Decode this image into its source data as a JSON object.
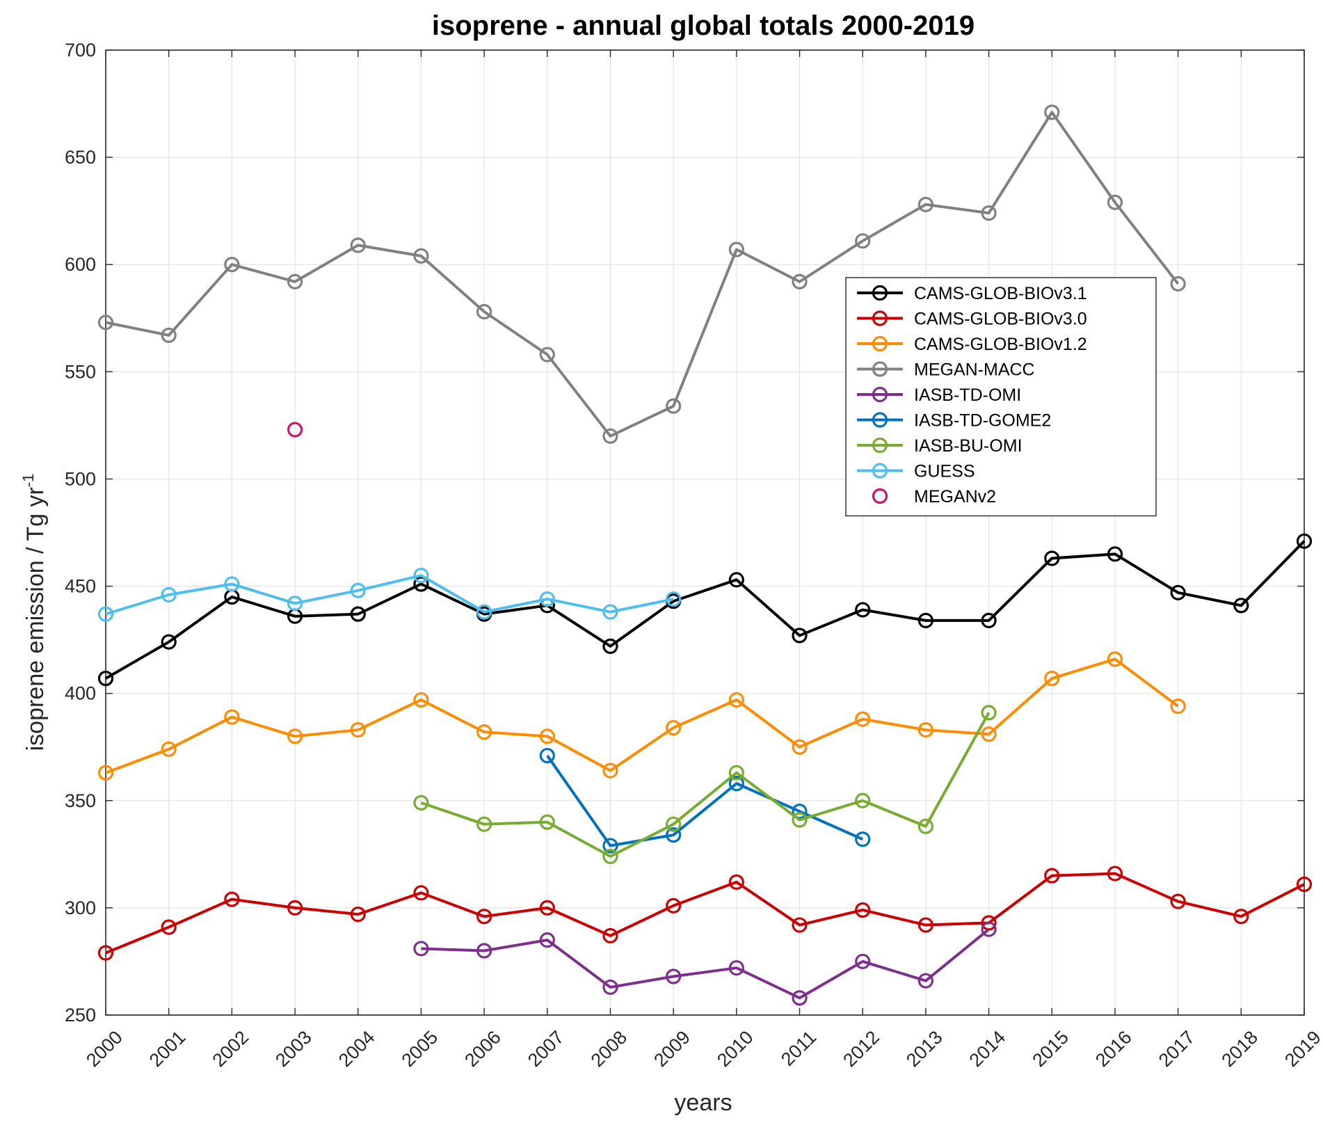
{
  "chart_data": {
    "type": "line",
    "title": "isoprene - annual global totals 2000-2019",
    "xlabel": "years",
    "ylabel_main": "isoprene emission / Tg yr",
    "ylabel_sup": "-1",
    "xlim": [
      2000,
      2019
    ],
    "ylim": [
      250,
      700
    ],
    "x_ticks": [
      "2000",
      "2001",
      "2002",
      "2003",
      "2004",
      "2005",
      "2006",
      "2007",
      "2008",
      "2009",
      "2010",
      "2011",
      "2012",
      "2013",
      "2014",
      "2015",
      "2016",
      "2017",
      "2018",
      "2019"
    ],
    "y_ticks": [
      "250",
      "300",
      "350",
      "400",
      "450",
      "500",
      "550",
      "600",
      "650",
      "700"
    ],
    "grid": true,
    "legend_position": "upper-right-inside",
    "series": [
      {
        "name": "CAMS-GLOB-BIOv3.1",
        "color": "#000000",
        "line": true,
        "x": [
          2000,
          2001,
          2002,
          2003,
          2004,
          2005,
          2006,
          2007,
          2008,
          2009,
          2010,
          2011,
          2012,
          2013,
          2014,
          2015,
          2016,
          2017,
          2018,
          2019
        ],
        "y": [
          407,
          424,
          445,
          436,
          437,
          451,
          437,
          441,
          422,
          443,
          453,
          427,
          439,
          434,
          434,
          463,
          465,
          447,
          441,
          471
        ]
      },
      {
        "name": "CAMS-GLOB-BIOv3.0",
        "color": "#cc0000",
        "line": true,
        "x": [
          2000,
          2001,
          2002,
          2003,
          2004,
          2005,
          2006,
          2007,
          2008,
          2009,
          2010,
          2011,
          2012,
          2013,
          2014,
          2015,
          2016,
          2017,
          2018,
          2019
        ],
        "y": [
          279,
          291,
          304,
          300,
          297,
          307,
          296,
          300,
          287,
          301,
          312,
          292,
          299,
          292,
          293,
          315,
          316,
          303,
          296,
          311
        ]
      },
      {
        "name": "CAMS-GLOB-BIOv1.2",
        "color": "#ff8c00",
        "line": true,
        "x": [
          2000,
          2001,
          2002,
          2003,
          2004,
          2005,
          2006,
          2007,
          2008,
          2009,
          2010,
          2011,
          2012,
          2013,
          2014,
          2015,
          2016,
          2017
        ],
        "y": [
          363,
          374,
          389,
          380,
          383,
          397,
          382,
          380,
          364,
          384,
          397,
          375,
          388,
          383,
          381,
          407,
          416,
          394
        ]
      },
      {
        "name": "MEGAN-MACC",
        "color": "#808080",
        "line": true,
        "x": [
          2000,
          2001,
          2002,
          2003,
          2004,
          2005,
          2006,
          2007,
          2008,
          2009,
          2010,
          2011,
          2012,
          2013,
          2014,
          2015,
          2016,
          2017
        ],
        "y": [
          573,
          567,
          600,
          592,
          609,
          604,
          578,
          558,
          520,
          534,
          607,
          592,
          611,
          628,
          624,
          671,
          629,
          591
        ]
      },
      {
        "name": "IASB-TD-OMI",
        "color": "#7e2f8e",
        "line": true,
        "x": [
          2005,
          2006,
          2007,
          2008,
          2009,
          2010,
          2011,
          2012,
          2013,
          2014
        ],
        "y": [
          281,
          280,
          285,
          263,
          268,
          272,
          258,
          275,
          266,
          290
        ]
      },
      {
        "name": "IASB-TD-GOME2",
        "color": "#0072bd",
        "line": true,
        "x": [
          2007,
          2008,
          2009,
          2010,
          2011,
          2012
        ],
        "y": [
          371,
          329,
          334,
          358,
          345,
          332
        ]
      },
      {
        "name": "IASB-BU-OMI",
        "color": "#77ac30",
        "line": true,
        "x": [
          2005,
          2006,
          2007,
          2008,
          2009,
          2010,
          2011,
          2012,
          2013,
          2014
        ],
        "y": [
          349,
          339,
          340,
          324,
          339,
          363,
          341,
          350,
          338,
          391
        ]
      },
      {
        "name": "GUESS",
        "color": "#4dbeee",
        "line": true,
        "x": [
          2000,
          2001,
          2002,
          2003,
          2004,
          2005,
          2006,
          2007,
          2008,
          2009
        ],
        "y": [
          437,
          446,
          451,
          442,
          448,
          455,
          438,
          444,
          438,
          444
        ]
      },
      {
        "name": "MEGANv2",
        "color": "#d0106a",
        "line": false,
        "x": [
          2003
        ],
        "y": [
          523
        ]
      }
    ]
  }
}
